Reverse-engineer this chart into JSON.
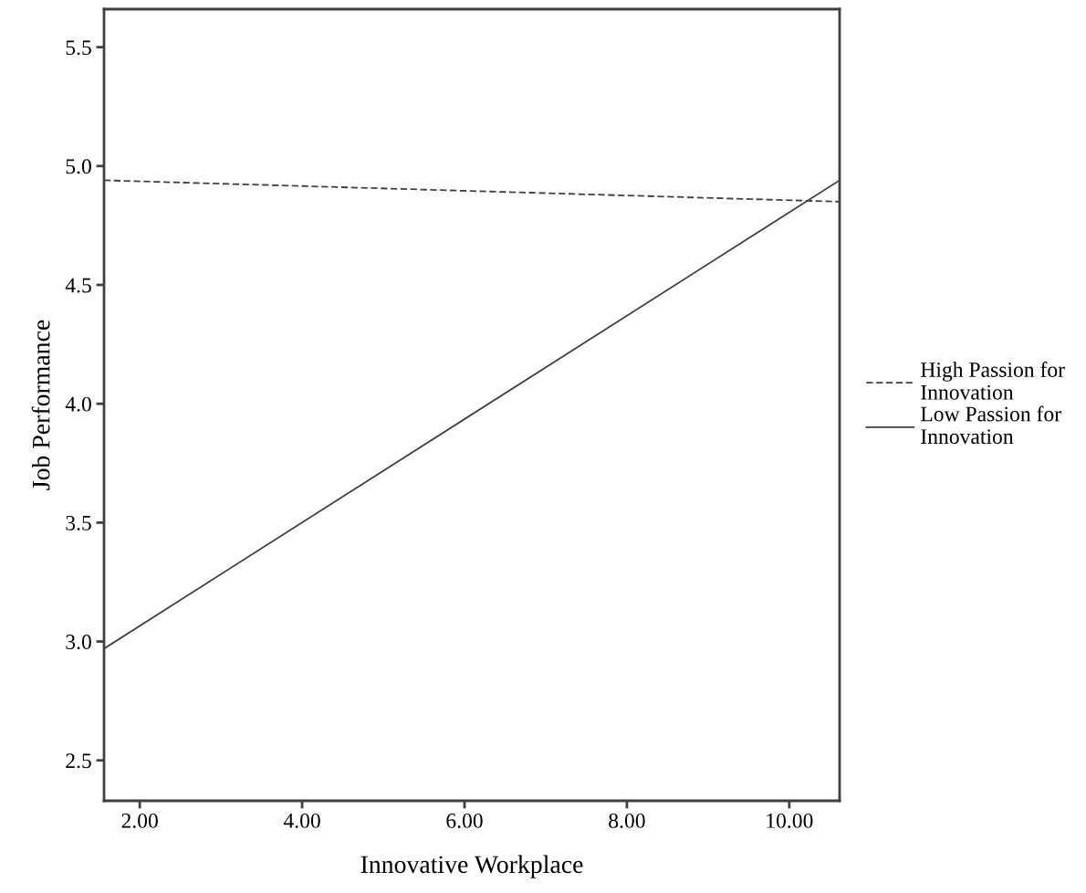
{
  "chart_data": {
    "type": "line",
    "xlabel": "Innovative Workplace",
    "ylabel": "Job Performance",
    "xlim": [
      1.56,
      10.62
    ],
    "ylim": [
      2.33,
      5.66
    ],
    "xticks": [
      {
        "value": 2,
        "label": "2.00"
      },
      {
        "value": 4,
        "label": "4.00"
      },
      {
        "value": 6,
        "label": "6.00"
      },
      {
        "value": 8,
        "label": "8.00"
      },
      {
        "value": 10,
        "label": "10.00"
      }
    ],
    "yticks": [
      {
        "value": 2.5,
        "label": "2.5"
      },
      {
        "value": 3,
        "label": "3.0"
      },
      {
        "value": 3.5,
        "label": "3.5"
      },
      {
        "value": 4,
        "label": "4.0"
      },
      {
        "value": 4.5,
        "label": "4.5"
      },
      {
        "value": 5,
        "label": "5.0"
      },
      {
        "value": 5.5,
        "label": "5.5"
      }
    ],
    "x": [
      1.56,
      10.62
    ],
    "series": [
      {
        "name": "High Passion for Innovation",
        "color": "#404040",
        "values": [
          4.94,
          4.85
        ],
        "line_style": "dashed"
      },
      {
        "name": "Low Passion for Innovation",
        "color": "#404040",
        "values": [
          2.97,
          4.94
        ],
        "line_style": "solid"
      }
    ],
    "legend": "right",
    "grid": false,
    "marker": "none"
  }
}
